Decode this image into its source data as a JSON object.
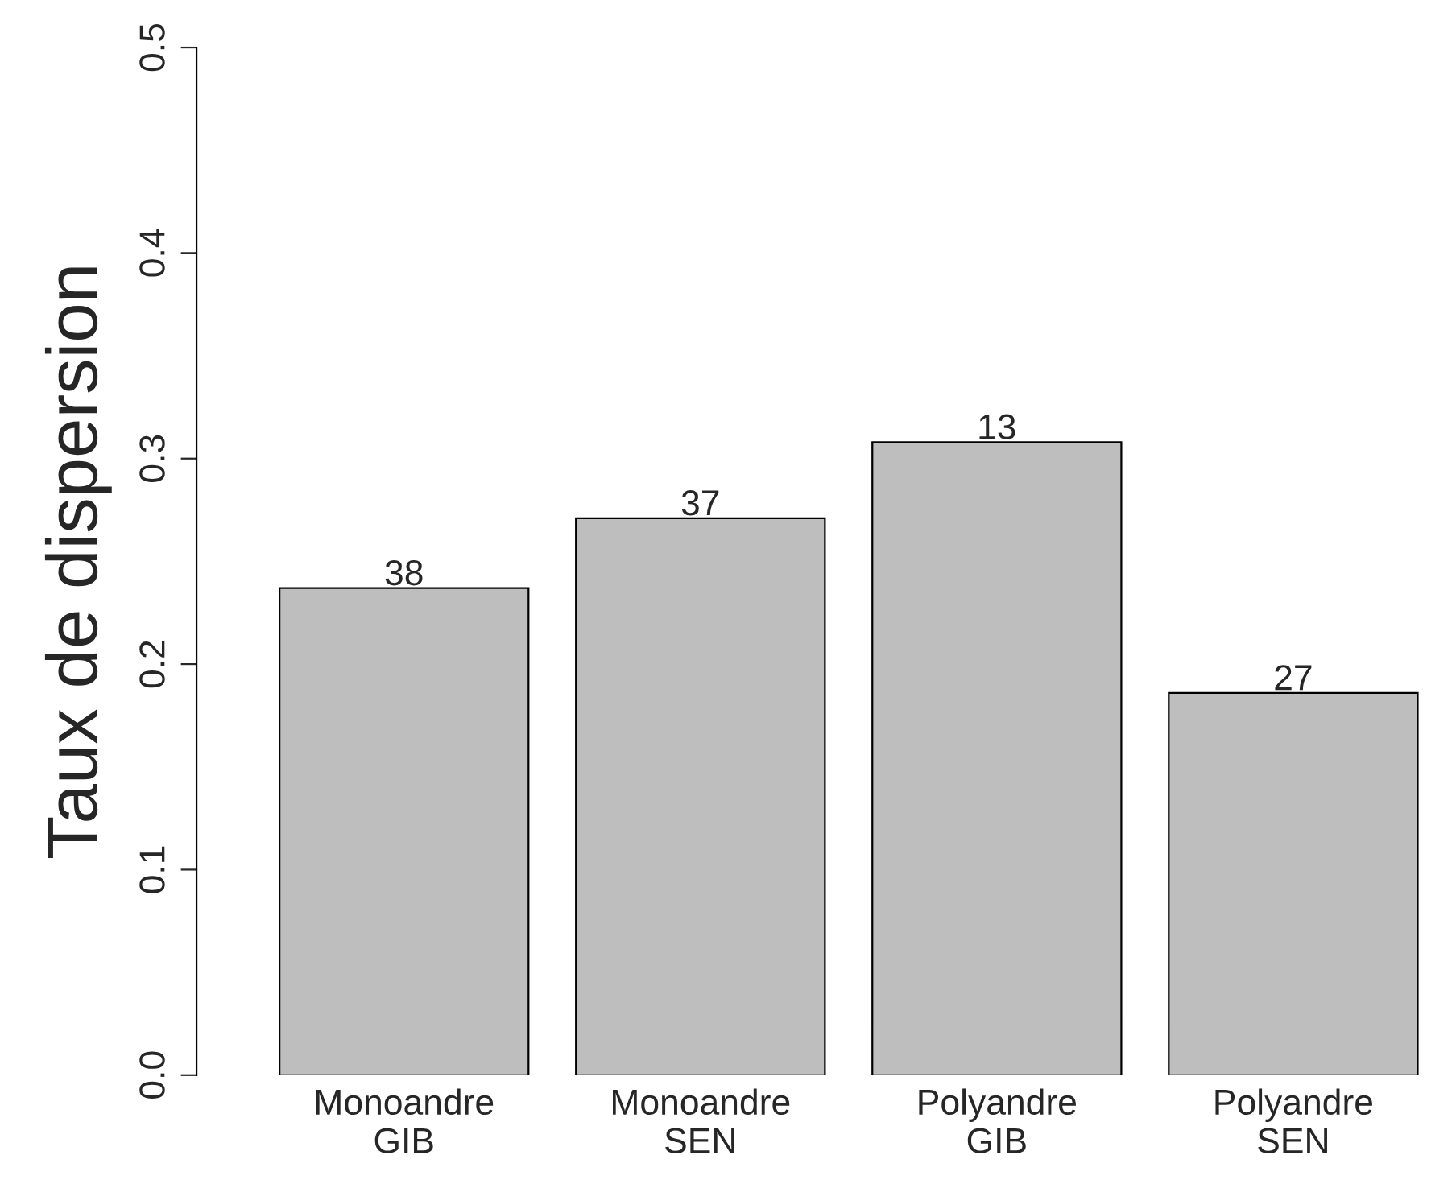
{
  "chart_data": {
    "type": "bar",
    "ylabel": "Taux de dispersion",
    "categories": [
      "Monoandre\nGIB",
      "Monoandre\nSEN",
      "Polyandre\nGIB",
      "Polyandre\nSEN"
    ],
    "values": [
      0.237,
      0.271,
      0.308,
      0.186
    ],
    "annotations": [
      {
        "text": "38",
        "x": "Monoandre\nGIB",
        "y": 0.237
      },
      {
        "text": "37",
        "x": "Monoandre\nSEN",
        "y": 0.271
      },
      {
        "text": "13",
        "x": "Polyandre\nGIB",
        "y": 0.308
      },
      {
        "text": "27",
        "x": "Polyandre\nSEN",
        "y": 0.186
      }
    ],
    "color": "#bebebe",
    "ylim": [
      0,
      0.5
    ],
    "yticks": [
      {
        "value": 0,
        "label": "0.0"
      },
      {
        "value": 0.1,
        "label": "0.1"
      },
      {
        "value": 0.2,
        "label": "0.2"
      },
      {
        "value": 0.3,
        "label": "0.3"
      },
      {
        "value": 0.4,
        "label": "0.4"
      },
      {
        "value": 0.5,
        "label": "0.5"
      }
    ],
    "grid": false,
    "legend": false
  }
}
